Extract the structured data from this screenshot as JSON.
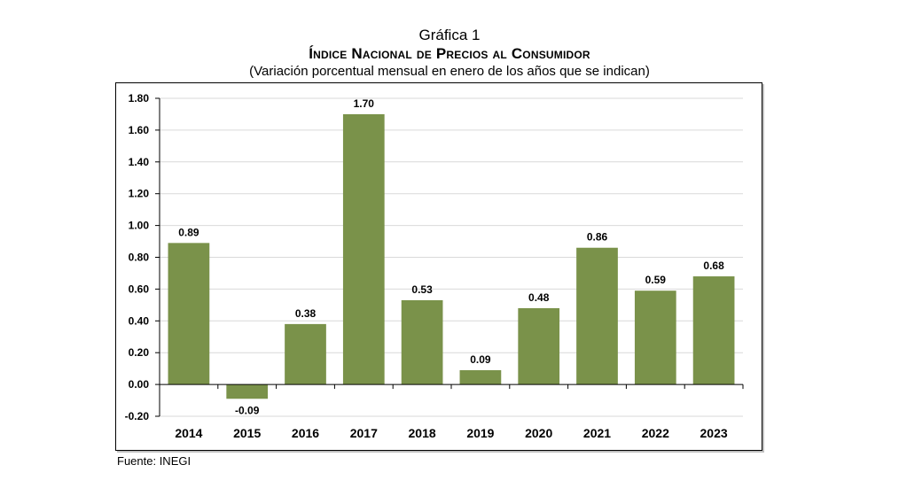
{
  "title": {
    "line1": "Gráfica 1",
    "line2": "Índice Nacional de Precios al Consumidor",
    "line3": "(Variación porcentual mensual en enero de los años que se indican)"
  },
  "source": "Fuente: INEGI",
  "colors": {
    "bar": "#7a924a",
    "grid": "#d9d9d9",
    "axis": "#000000"
  },
  "chart_data": {
    "type": "bar",
    "categories": [
      "2014",
      "2015",
      "2016",
      "2017",
      "2018",
      "2019",
      "2020",
      "2021",
      "2022",
      "2023"
    ],
    "values": [
      0.89,
      -0.09,
      0.38,
      1.7,
      0.53,
      0.09,
      0.48,
      0.86,
      0.59,
      0.68
    ],
    "data_labels": [
      "0.89",
      "-0.09",
      "0.38",
      "1.70",
      "0.53",
      "0.09",
      "0.48",
      "0.86",
      "0.59",
      "0.68"
    ],
    "ylim": [
      -0.2,
      1.8
    ],
    "yticks": [
      "-0.20",
      "0.00",
      "0.20",
      "0.40",
      "0.60",
      "0.80",
      "1.00",
      "1.20",
      "1.40",
      "1.60",
      "1.80"
    ],
    "ytick_values": [
      -0.2,
      0.0,
      0.2,
      0.4,
      0.6,
      0.8,
      1.0,
      1.2,
      1.4,
      1.6,
      1.8
    ],
    "grid": true,
    "legend": "none",
    "xlabel": "",
    "ylabel": ""
  }
}
